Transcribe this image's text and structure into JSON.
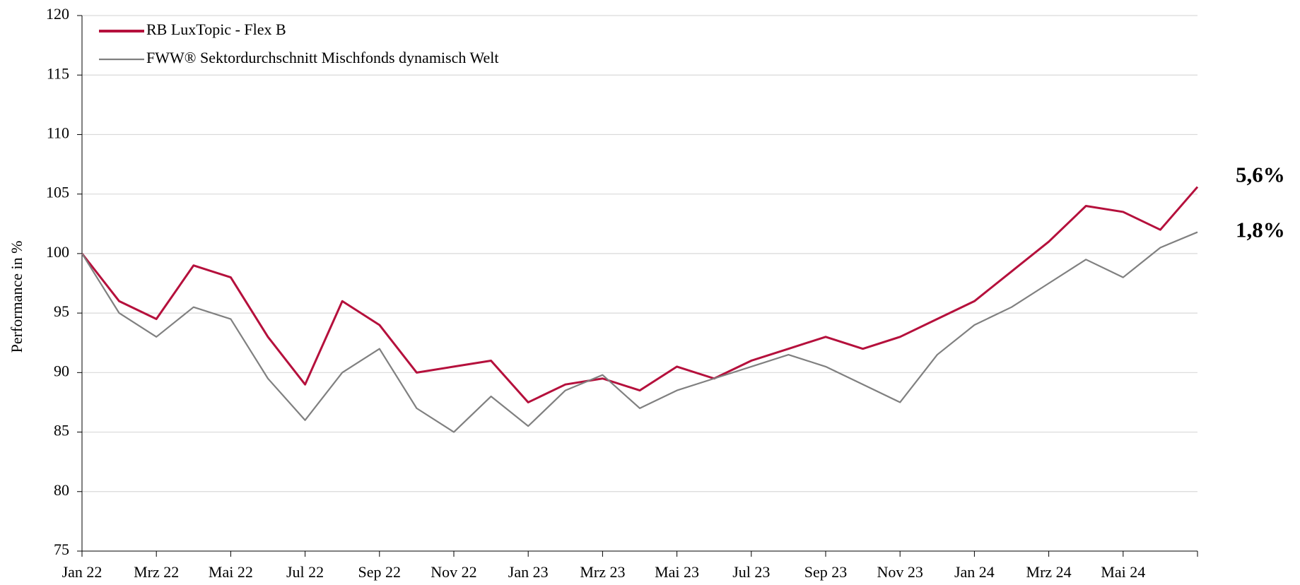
{
  "chart_data": {
    "type": "line",
    "y_label": "Performance in %",
    "categories": [
      "Jan 22",
      null,
      "Mrz 22",
      null,
      "Mai 22",
      null,
      "Jul 22",
      null,
      "Sep 22",
      null,
      "Nov 22",
      null,
      "Jan 23",
      null,
      "Mrz 23",
      null,
      "Mai 23",
      null,
      "Jul 23",
      null,
      "Sep 23",
      null,
      "Nov 23",
      null,
      "Jan 24",
      null,
      "Mrz 24",
      null,
      "Mai 24",
      null,
      null
    ],
    "series": [
      {
        "name": "RB LuxTopic - Flex B",
        "color": "#b5103c",
        "end_label": "5,6%",
        "values": [
          100,
          96,
          94.5,
          99,
          98,
          93,
          89,
          96,
          94,
          90,
          90.5,
          91,
          87.5,
          89,
          89.5,
          88.5,
          90.5,
          89.5,
          91,
          92,
          93,
          92,
          93,
          94.5,
          96,
          98.5,
          101,
          104,
          103.5,
          102,
          105.6
        ]
      },
      {
        "name": "FWW® Sektordurchschnitt Mischfonds dynamisch Welt",
        "color": "#808080",
        "end_label": "1,8%",
        "values": [
          100,
          95,
          93,
          95.5,
          94.5,
          89.5,
          86,
          90,
          92,
          87,
          85,
          88,
          85.5,
          88.5,
          89.8,
          87,
          88.5,
          89.5,
          90.5,
          91.5,
          90.5,
          89,
          87.5,
          91.5,
          94,
          95.5,
          97.5,
          99.5,
          98,
          100.5,
          101.8
        ]
      }
    ],
    "ylim": [
      75,
      120
    ],
    "yticks": [
      75,
      80,
      85,
      90,
      95,
      100,
      105,
      110,
      115,
      120
    ],
    "grid": true
  }
}
